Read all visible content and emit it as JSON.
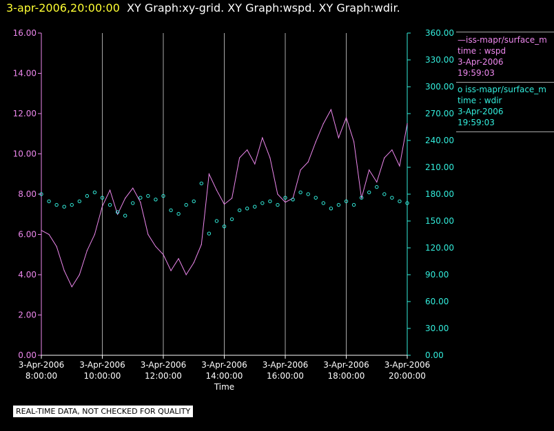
{
  "title": {
    "timestamp": "3-apr-2006,20:00:00",
    "graphs": "XY Graph:xy-grid.  XY Graph:wspd.  XY Graph:wdir."
  },
  "legend": {
    "series1": {
      "line": "—iss-mapr/surface_m",
      "time": "time : wspd",
      "date": "3-Apr-2006",
      "clock": "19:59:03"
    },
    "series2": {
      "line": "o  iss-mapr/surface_m",
      "time": "time : wdir",
      "date": "3-Apr-2006",
      "clock": "19:59:03"
    }
  },
  "footer": {
    "quality_note": "REAL-TIME DATA, NOT CHECKED FOR QUALITY"
  },
  "colors": {
    "wspd": "#ee88ee",
    "wdir": "#33eedd",
    "grid": "#aaaaaa",
    "axis_time": "#ffffff"
  },
  "chart_data": {
    "type": "line",
    "xlabel": "Time",
    "x_ticks": [
      {
        "hour": 8,
        "date": "3-Apr-2006",
        "time": "8:00:00"
      },
      {
        "hour": 10,
        "date": "3-Apr-2006",
        "time": "10:00:00"
      },
      {
        "hour": 12,
        "date": "3-Apr-2006",
        "time": "12:00:00"
      },
      {
        "hour": 14,
        "date": "3-Apr-2006",
        "time": "14:00:00"
      },
      {
        "hour": 16,
        "date": "3-Apr-2006",
        "time": "16:00:00"
      },
      {
        "hour": 18,
        "date": "3-Apr-2006",
        "time": "18:00:00"
      },
      {
        "hour": 20,
        "date": "3-Apr-2006",
        "time": "20:00:00"
      }
    ],
    "x_range_hours": [
      8,
      20
    ],
    "y_left": {
      "range": [
        0,
        16
      ],
      "ticks": [
        "0.00",
        "2.00",
        "4.00",
        "6.00",
        "8.00",
        "10.00",
        "12.00",
        "14.00",
        "16.00"
      ]
    },
    "y_right": {
      "range": [
        0,
        360
      ],
      "ticks": [
        "0.00",
        "30.00",
        "60.00",
        "90.00",
        "120.00",
        "150.00",
        "180.00",
        "210.00",
        "240.00",
        "270.00",
        "300.00",
        "330.00",
        "360.00"
      ]
    },
    "grid_vertical": true,
    "series": [
      {
        "key": "wspd",
        "axis": "left",
        "style": "line",
        "x": [
          8,
          8.25,
          8.5,
          8.75,
          9,
          9.25,
          9.5,
          9.75,
          10,
          10.25,
          10.5,
          10.75,
          11,
          11.25,
          11.5,
          11.75,
          12,
          12.25,
          12.5,
          12.75,
          13,
          13.25,
          13.5,
          13.75,
          14,
          14.25,
          14.5,
          14.75,
          15,
          15.25,
          15.5,
          15.75,
          16,
          16.25,
          16.5,
          16.75,
          17,
          17.25,
          17.5,
          17.75,
          18,
          18.25,
          18.5,
          18.75,
          19,
          19.25,
          19.5,
          19.75,
          20
        ],
        "y": [
          6.2,
          6.0,
          5.4,
          4.2,
          3.4,
          4.0,
          5.2,
          6.0,
          7.4,
          8.2,
          7.0,
          7.8,
          8.3,
          7.6,
          6.0,
          5.4,
          5.0,
          4.2,
          4.8,
          4.0,
          4.6,
          5.5,
          9.0,
          8.2,
          7.5,
          7.8,
          9.8,
          10.2,
          9.5,
          10.8,
          9.8,
          8.0,
          7.6,
          7.8,
          9.2,
          9.6,
          10.6,
          11.5,
          12.2,
          10.8,
          11.8,
          10.6,
          7.8,
          9.2,
          8.6,
          9.8,
          10.2,
          9.4,
          11.5
        ]
      },
      {
        "key": "wdir",
        "axis": "right",
        "style": "points",
        "x": [
          8,
          8.25,
          8.5,
          8.75,
          9,
          9.25,
          9.5,
          9.75,
          10,
          10.25,
          10.5,
          10.75,
          11,
          11.25,
          11.5,
          11.75,
          12,
          12.25,
          12.5,
          12.75,
          13,
          13.25,
          13.5,
          13.75,
          14,
          14.25,
          14.5,
          14.75,
          15,
          15.25,
          15.5,
          15.75,
          16,
          16.25,
          16.5,
          16.75,
          17,
          17.25,
          17.5,
          17.75,
          18,
          18.25,
          18.5,
          18.75,
          19,
          19.25,
          19.5,
          19.75,
          20
        ],
        "y": [
          180,
          172,
          168,
          166,
          168,
          172,
          178,
          182,
          176,
          168,
          160,
          156,
          170,
          176,
          178,
          174,
          178,
          162,
          158,
          168,
          172,
          192,
          136,
          150,
          144,
          152,
          162,
          164,
          166,
          170,
          172,
          168,
          176,
          174,
          182,
          180,
          176,
          170,
          164,
          168,
          172,
          168,
          176,
          182,
          188,
          180,
          176,
          172,
          170
        ]
      }
    ]
  }
}
